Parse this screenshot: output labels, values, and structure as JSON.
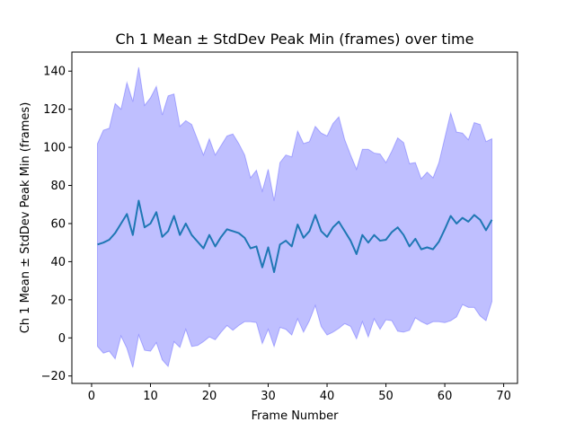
{
  "chart_data": {
    "type": "line",
    "title": "Ch 1 Mean ± StdDev Peak Min (frames) over time",
    "xlabel": "Frame Number",
    "ylabel": "Ch 1 Mean ± StdDev Peak Min (frames)",
    "xlim": [
      -3.35,
      72.35
    ],
    "ylim": [
      -23.9,
      150.0
    ],
    "xticks": [
      0,
      10,
      20,
      30,
      40,
      50,
      60,
      70
    ],
    "yticks": [
      -20,
      0,
      20,
      40,
      60,
      80,
      100,
      120,
      140
    ],
    "grid": false,
    "legend": "none",
    "colors": {
      "line": "#1f77b4",
      "band": "#0000ff"
    },
    "x": [
      1,
      2,
      3,
      4,
      5,
      6,
      7,
      8,
      9,
      10,
      11,
      12,
      13,
      14,
      15,
      16,
      17,
      18,
      19,
      20,
      21,
      22,
      23,
      24,
      25,
      26,
      27,
      28,
      29,
      30,
      31,
      32,
      33,
      34,
      35,
      36,
      37,
      38,
      39,
      40,
      41,
      42,
      43,
      44,
      45,
      46,
      47,
      48,
      49,
      50,
      51,
      52,
      53,
      54,
      55,
      56,
      57,
      58,
      59,
      60,
      61,
      62,
      63,
      64,
      65,
      66,
      67,
      68
    ],
    "series": [
      {
        "name": "",
        "role": "mean",
        "values": [
          49,
          50,
          51.5,
          55,
          60,
          65,
          54,
          72,
          58,
          60,
          66,
          53,
          56,
          64,
          54,
          60,
          54,
          50.5,
          47,
          54,
          48,
          53,
          57,
          56,
          55,
          52.5,
          47,
          48,
          37,
          47.5,
          34.5,
          49,
          51,
          48,
          59.5,
          52.5,
          56,
          64.5,
          56,
          53,
          58,
          61,
          56,
          51,
          44,
          54,
          50,
          54,
          51,
          51.5,
          55.5,
          58,
          54,
          48,
          52,
          46.5,
          47.5,
          46.5,
          50.5,
          57,
          64,
          60,
          63,
          61,
          64.5,
          62,
          56.5,
          62
        ]
      },
      {
        "name": "",
        "role": "upper",
        "values": [
          102,
          109,
          110,
          123,
          120,
          134,
          124,
          142,
          122,
          126,
          132,
          117,
          127,
          128,
          111,
          114,
          112,
          104,
          96,
          104.5,
          96,
          101,
          106,
          107,
          102,
          96,
          84,
          88,
          77,
          88.5,
          72,
          92,
          96,
          95,
          108.5,
          102,
          103,
          111,
          107.5,
          106,
          112.5,
          116,
          104,
          96,
          88.5,
          99,
          99,
          97,
          96.5,
          92,
          98,
          105,
          102.5,
          91.5,
          92,
          83.5,
          87,
          84,
          92,
          105,
          118,
          108,
          107.5,
          104,
          113,
          112,
          103,
          104.5
        ]
      },
      {
        "name": "",
        "role": "lower",
        "values": [
          -4.5,
          -8,
          -7,
          -11,
          1,
          -5.5,
          -15.5,
          1.5,
          -6.5,
          -7,
          -2.5,
          -11.5,
          -15,
          -2,
          -5,
          4.5,
          -4.5,
          -4,
          -2,
          0.5,
          -1,
          3,
          6.5,
          4,
          6.5,
          8.5,
          8.5,
          8,
          -3,
          4.5,
          -4.5,
          5.5,
          4.5,
          1.5,
          10,
          3,
          9,
          17,
          6,
          1.5,
          3,
          5,
          7.5,
          6,
          -0.5,
          8.5,
          0.5,
          10,
          4.5,
          9.5,
          9,
          3.5,
          3,
          4,
          10.5,
          8.5,
          7,
          8.5,
          8.5,
          8,
          9,
          11,
          17.5,
          16,
          16,
          11.5,
          9,
          19
        ]
      }
    ]
  }
}
